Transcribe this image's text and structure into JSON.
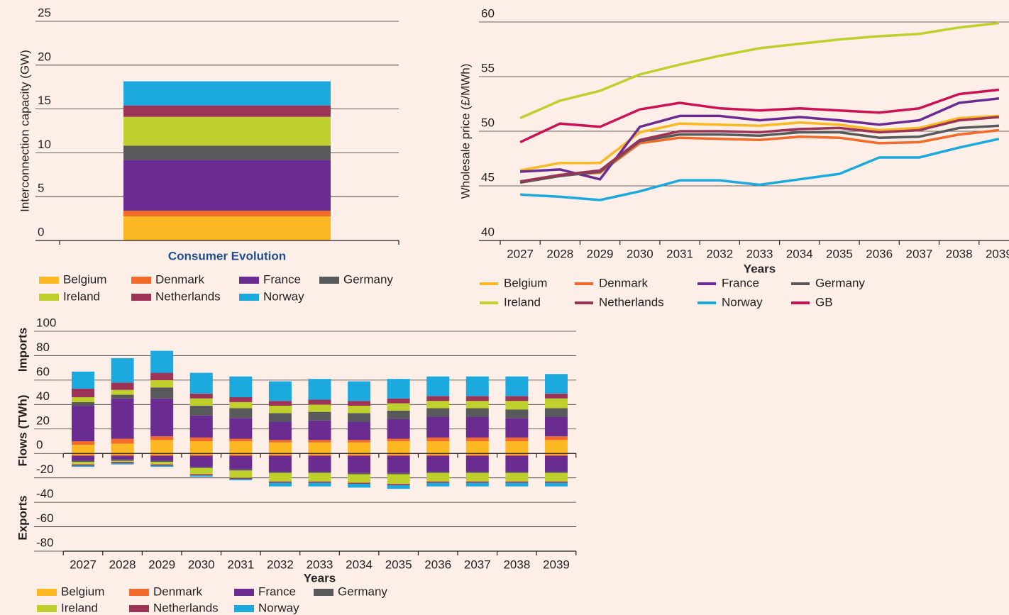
{
  "chart_data": [
    {
      "type": "bar",
      "stacked": true,
      "ylabel": "Interconnection capacity (GW)",
      "categories": [
        "Consumer Evolution"
      ],
      "ylim": [
        0,
        25
      ],
      "yticks": [
        0,
        5,
        10,
        15,
        20,
        25
      ],
      "grid": true,
      "series": [
        {
          "name": "Belgium",
          "color": "#fbb822",
          "values": [
            2.75
          ]
        },
        {
          "name": "Denmark",
          "color": "#f26b2a",
          "values": [
            0.65
          ]
        },
        {
          "name": "France",
          "color": "#6a2c91",
          "values": [
            5.8
          ]
        },
        {
          "name": "Germany",
          "color": "#58595b",
          "values": [
            1.6
          ]
        },
        {
          "name": "Ireland",
          "color": "#bfcf2c",
          "values": [
            3.3
          ]
        },
        {
          "name": "Netherlands",
          "color": "#9c3457",
          "values": [
            1.3
          ]
        },
        {
          "name": "Norway",
          "color": "#1ba9de",
          "values": [
            2.75
          ]
        }
      ]
    },
    {
      "type": "line",
      "ylabel": "Wholesale price (£/MWh)",
      "xlabel": "Years",
      "x": [
        2027,
        2028,
        2029,
        2030,
        2031,
        2032,
        2033,
        2034,
        2035,
        2036,
        2037,
        2038,
        2039
      ],
      "xticks": [
        2027,
        2028,
        2029,
        2030,
        2031,
        2032,
        2033,
        2034,
        2035,
        2036,
        2037,
        2038,
        2039
      ],
      "xlim": [
        2026.5,
        2039.5
      ],
      "ylim": [
        40,
        60
      ],
      "yticks": [
        40,
        45,
        50,
        55,
        60
      ],
      "grid": true,
      "series": [
        {
          "name": "Belgium",
          "color": "#fbb822",
          "values": [
            46.4,
            47.1,
            47.1,
            49.9,
            50.7,
            50.6,
            50.5,
            50.8,
            50.6,
            50.1,
            50.3,
            51.2,
            51.4
          ]
        },
        {
          "name": "Denmark",
          "color": "#f26b2a",
          "values": [
            45.3,
            46.0,
            46.2,
            48.9,
            49.4,
            49.3,
            49.2,
            49.5,
            49.4,
            48.9,
            49.0,
            49.7,
            50.1
          ]
        },
        {
          "name": "France",
          "color": "#6a2c91",
          "values": [
            46.3,
            46.5,
            45.6,
            50.4,
            51.4,
            51.4,
            51.0,
            51.3,
            51.0,
            50.6,
            51.0,
            52.6,
            53.0
          ]
        },
        {
          "name": "Germany",
          "color": "#58595b",
          "values": [
            45.3,
            45.9,
            46.3,
            49.1,
            49.7,
            49.7,
            49.6,
            49.9,
            49.9,
            49.4,
            49.5,
            50.3,
            50.5
          ]
        },
        {
          "name": "Ireland",
          "color": "#bfcf2c",
          "values": [
            51.2,
            52.8,
            53.7,
            55.2,
            56.1,
            56.9,
            57.6,
            58.0,
            58.4,
            58.7,
            58.9,
            59.5,
            59.9
          ]
        },
        {
          "name": "Netherlands",
          "color": "#9c3457",
          "values": [
            45.4,
            46.0,
            46.4,
            49.2,
            50.0,
            50.0,
            49.9,
            50.2,
            50.3,
            49.9,
            50.1,
            51.0,
            51.3
          ]
        },
        {
          "name": "Norway",
          "color": "#1ba9de",
          "values": [
            44.2,
            44.0,
            43.7,
            44.5,
            45.5,
            45.5,
            45.1,
            45.6,
            46.1,
            47.6,
            47.6,
            48.5,
            49.3
          ]
        },
        {
          "name": "GB",
          "color": "#cc1155",
          "values": [
            49.0,
            50.7,
            50.4,
            52.0,
            52.6,
            52.1,
            51.9,
            52.1,
            51.9,
            51.7,
            52.1,
            53.4,
            53.8
          ]
        }
      ]
    },
    {
      "type": "bar",
      "stacked": true,
      "ylabel": "Flows (TWh)",
      "ylabel_top": "Imports",
      "ylabel_bottom": "Exports",
      "xlabel": "Years",
      "categories": [
        "2027",
        "2028",
        "2029",
        "2030",
        "2031",
        "2032",
        "2033",
        "2034",
        "2035",
        "2036",
        "2037",
        "2038",
        "2039"
      ],
      "ylim": [
        -80,
        100
      ],
      "yticks": [
        -80,
        -60,
        -40,
        -20,
        0,
        20,
        40,
        60,
        80,
        100
      ],
      "grid": true,
      "series": [
        {
          "name": "Belgium",
          "color": "#fbb822",
          "values": [
            7,
            8,
            11,
            10,
            10,
            9,
            9,
            9,
            10,
            10,
            10,
            10,
            11
          ],
          "exports": [
            -1,
            -1,
            -1,
            -1,
            -1,
            -1,
            -1,
            -1,
            -1,
            -1,
            -1,
            -1,
            -1
          ]
        },
        {
          "name": "Denmark",
          "color": "#f26b2a",
          "values": [
            3,
            4,
            3,
            3,
            2,
            2,
            2,
            2,
            2,
            3,
            3,
            3,
            3
          ],
          "exports": [
            -1,
            -1,
            -1,
            -1,
            -1,
            -1,
            -1,
            -1,
            -1,
            -1,
            -1,
            -1,
            -1
          ]
        },
        {
          "name": "France",
          "color": "#6a2c91",
          "values": [
            29,
            33,
            31,
            18,
            17,
            15,
            16,
            15,
            16,
            17,
            17,
            16,
            16
          ],
          "exports": [
            -4,
            -3,
            -4,
            -9,
            -11,
            -13,
            -13,
            -14,
            -14,
            -13,
            -13,
            -13,
            -13
          ]
        },
        {
          "name": "Germany",
          "color": "#58595b",
          "values": [
            3,
            3,
            9,
            8,
            8,
            7,
            7,
            7,
            7,
            7,
            7,
            7,
            7
          ],
          "exports": [
            -1,
            -1,
            -1,
            -1,
            -1,
            -1,
            -1,
            -1,
            -1,
            -1,
            -1,
            -1,
            -1
          ]
        },
        {
          "name": "Ireland",
          "color": "#bfcf2c",
          "values": [
            4,
            4,
            6,
            6,
            5,
            6,
            6,
            6,
            6,
            6,
            6,
            7,
            8
          ],
          "exports": [
            -2,
            -1,
            -2,
            -5,
            -6,
            -7,
            -7,
            -7,
            -8,
            -7,
            -7,
            -7,
            -7
          ]
        },
        {
          "name": "Netherlands",
          "color": "#9c3457",
          "values": [
            7,
            6,
            6,
            4,
            4,
            4,
            4,
            4,
            4,
            4,
            4,
            4,
            4
          ],
          "exports": [
            -1,
            -1,
            -1,
            -1,
            -1,
            -1,
            -1,
            -1,
            -1,
            -1,
            -1,
            -1,
            -1
          ]
        },
        {
          "name": "Norway",
          "color": "#1ba9de",
          "values": [
            14,
            20,
            18,
            17,
            17,
            16,
            17,
            16,
            16,
            16,
            16,
            16,
            16
          ],
          "exports": [
            -1,
            -1,
            -1,
            -1,
            -1,
            -3,
            -3,
            -3,
            -3,
            -3,
            -3,
            -3,
            -3
          ]
        }
      ]
    }
  ]
}
